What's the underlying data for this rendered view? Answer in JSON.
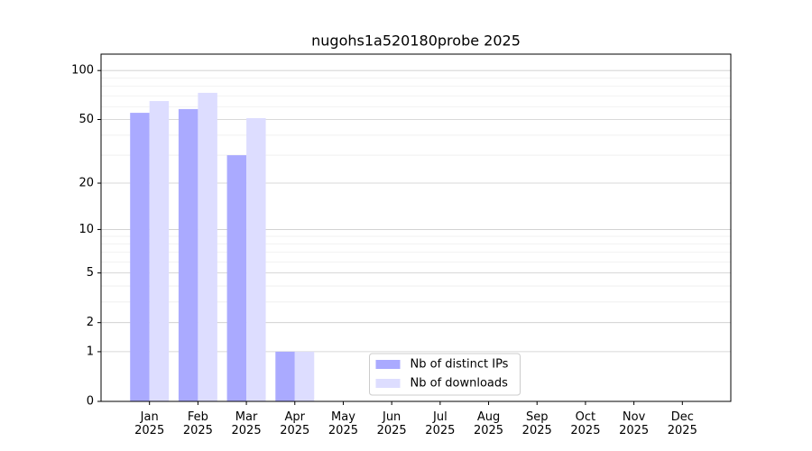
{
  "chart_data": {
    "type": "bar",
    "title": "nugohs1a520180probe 2025",
    "categories": [
      "Jan\n2025",
      "Feb\n2025",
      "Mar\n2025",
      "Apr\n2025",
      "May\n2025",
      "Jun\n2025",
      "Jul\n2025",
      "Aug\n2025",
      "Sep\n2025",
      "Oct\n2025",
      "Nov\n2025",
      "Dec\n2025"
    ],
    "series": [
      {
        "name": "Nb of distinct IPs",
        "color": "#aaaaff",
        "values": [
          55,
          58,
          30,
          1,
          0,
          0,
          0,
          0,
          0,
          0,
          0,
          0
        ]
      },
      {
        "name": "Nb of downloads",
        "color": "#ddddff",
        "values": [
          65,
          73,
          51,
          1,
          0,
          0,
          0,
          0,
          0,
          0,
          0,
          0
        ]
      }
    ],
    "yscale": "symlog",
    "ylim": [
      0,
      126
    ],
    "yticks": [
      0,
      1,
      2,
      5,
      10,
      20,
      50,
      100
    ],
    "yminorticks": [
      3,
      4,
      6,
      7,
      8,
      9,
      30,
      40,
      60,
      70,
      80,
      90
    ],
    "grid": true,
    "legend": "lower center"
  }
}
